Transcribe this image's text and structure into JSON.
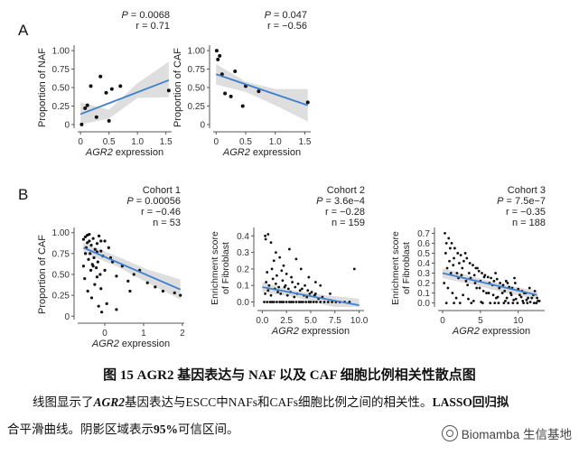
{
  "panels": {
    "a": "A",
    "b": "B"
  },
  "chart_data": [
    {
      "type": "scatter",
      "xlabel": "AGR2 expression",
      "ylabel": "Proportion of NAF",
      "xlim": [
        -0.05,
        1.6
      ],
      "ylim": [
        -0.05,
        1.05
      ],
      "xticks": [
        "0",
        "0.5",
        "1.0",
        "1.5"
      ],
      "xtick_vals": [
        0,
        0.5,
        1.0,
        1.5
      ],
      "yticks": [
        "0",
        "0.25",
        "0.50",
        "0.75",
        "1.00"
      ],
      "ytick_vals": [
        0,
        0.25,
        0.5,
        0.75,
        1.0
      ],
      "stats": [
        "P = 0.0068",
        "r = 0.71"
      ],
      "points": {
        "x": [
          0.02,
          0.08,
          0.12,
          0.18,
          0.28,
          0.35,
          0.45,
          0.5,
          0.55,
          0.7,
          1.55
        ],
        "y": [
          0.0,
          0.22,
          0.26,
          0.52,
          0.1,
          0.65,
          0.43,
          0.05,
          0.48,
          0.52,
          0.46
        ]
      },
      "fit": {
        "x": [
          0.0,
          1.55
        ],
        "y": [
          0.14,
          0.6
        ]
      },
      "ci_upper": [
        0.3,
        0.2,
        0.56,
        0.85
      ],
      "ci_lower": [
        0.0,
        0.08,
        0.36,
        0.37
      ],
      "ci_x": [
        0.0,
        0.5,
        1.0,
        1.55
      ]
    },
    {
      "type": "scatter",
      "xlabel": "AGR2 expression",
      "ylabel": "Proportion of CAF",
      "xlim": [
        -0.05,
        1.6
      ],
      "ylim": [
        -0.05,
        1.05
      ],
      "xticks": [
        "0",
        "0.5",
        "1.0",
        "1.5"
      ],
      "xtick_vals": [
        0,
        0.5,
        1.0,
        1.5
      ],
      "yticks": [
        "0",
        "0.25",
        "0.50",
        "0.75",
        "1.00"
      ],
      "ytick_vals": [
        0,
        0.25,
        0.5,
        0.75,
        1.0
      ],
      "stats": [
        "P = 0.047",
        "r = −0.56"
      ],
      "points": {
        "x": [
          0.01,
          0.03,
          0.06,
          0.1,
          0.15,
          0.25,
          0.32,
          0.45,
          0.5,
          0.72,
          1.55
        ],
        "y": [
          1.0,
          0.88,
          0.93,
          0.68,
          0.42,
          0.38,
          0.72,
          0.25,
          0.52,
          0.45,
          0.3
        ]
      },
      "fit": {
        "x": [
          0.0,
          1.55
        ],
        "y": [
          0.68,
          0.26
        ]
      },
      "ci_upper": [
        0.82,
        0.58,
        0.48,
        0.48
      ],
      "ci_lower": [
        0.54,
        0.44,
        0.26,
        0.04
      ],
      "ci_x": [
        0.0,
        0.5,
        1.0,
        1.55
      ]
    },
    {
      "type": "scatter",
      "title": "Cohort 1",
      "xlabel": "AGR2 expression",
      "ylabel": "Proportion of CAF",
      "xlim": [
        -0.7,
        2.05
      ],
      "ylim": [
        -0.04,
        1.04
      ],
      "xticks": [
        "0",
        "1",
        "2"
      ],
      "xtick_vals": [
        0,
        1,
        2
      ],
      "yticks": [
        "0",
        "0.25",
        "0.50",
        "0.75",
        "1.00"
      ],
      "ytick_vals": [
        0,
        0.25,
        0.5,
        0.75,
        1.0
      ],
      "stats": [
        "P = 0.00056",
        "r = −0.46",
        "n = 53"
      ],
      "points": {
        "x": [
          -0.55,
          -0.5,
          -0.45,
          -0.4,
          -0.35,
          -0.3,
          -0.25,
          -0.2,
          -0.15,
          -0.1,
          -0.05,
          0.0,
          -0.48,
          -0.42,
          -0.38,
          -0.32,
          -0.28,
          -0.22,
          -0.18,
          -0.12,
          -0.52,
          -0.36,
          -0.26,
          -0.44,
          -0.34,
          -0.16,
          -0.08,
          0.1,
          0.2,
          0.3,
          0.45,
          0.6,
          0.75,
          0.9,
          1.1,
          1.3,
          1.5,
          1.8,
          1.95,
          -0.5,
          -0.4,
          -0.3,
          -0.2,
          -0.1,
          0.05,
          0.15,
          -0.55,
          -0.45,
          -0.1,
          0.3,
          0.65,
          -0.2,
          0.0
        ],
        "y": [
          0.92,
          0.95,
          0.88,
          0.9,
          0.85,
          0.93,
          0.8,
          0.87,
          0.96,
          0.78,
          0.72,
          0.9,
          0.82,
          0.68,
          0.75,
          0.62,
          0.7,
          0.58,
          0.65,
          0.5,
          0.45,
          0.55,
          0.38,
          0.3,
          0.22,
          0.12,
          0.05,
          0.82,
          0.65,
          0.48,
          0.6,
          0.42,
          0.5,
          0.55,
          0.4,
          0.35,
          0.3,
          0.28,
          0.25,
          0.75,
          0.98,
          0.6,
          0.47,
          0.33,
          0.15,
          0.7,
          0.6,
          0.97,
          0.9,
          0.08,
          0.3,
          0.77,
          0.55
        ]
      },
      "fit": {
        "x": [
          -0.55,
          1.95
        ],
        "y": [
          0.82,
          0.32
        ]
      },
      "ci_upper": [
        0.88,
        0.72,
        0.56,
        0.44
      ],
      "ci_lower": [
        0.76,
        0.6,
        0.4,
        0.2
      ],
      "ci_x": [
        -0.55,
        0.3,
        1.1,
        1.95
      ]
    },
    {
      "type": "scatter",
      "title": "Cohort 2",
      "xlabel": "AGR2 expression",
      "ylabel": "Enrichment score of Fibroblast",
      "xlim": [
        -0.5,
        10.5
      ],
      "ylim": [
        -0.03,
        0.44
      ],
      "xticks": [
        "0.0",
        "2.5",
        "5.0",
        "7.5",
        "10.0"
      ],
      "xtick_vals": [
        0,
        2.5,
        5,
        7.5,
        10
      ],
      "yticks": [
        "0.0",
        "0.1",
        "0.2",
        "0.3",
        "0.4"
      ],
      "ytick_vals": [
        0,
        0.1,
        0.2,
        0.3,
        0.4
      ],
      "stats": [
        "P = 3.6e−4",
        "r = −0.28",
        "n = 159"
      ],
      "points": {
        "x": [
          0.2,
          0.5,
          0.8,
          1.0,
          1.2,
          1.5,
          1.8,
          2.0,
          2.2,
          2.5,
          2.8,
          3.0,
          3.2,
          3.5,
          3.8,
          4.0,
          4.2,
          4.5,
          4.8,
          5.0,
          5.3,
          5.6,
          6.0,
          6.4,
          6.8,
          7.2,
          7.6,
          8.0,
          8.5,
          9.0,
          0.3,
          0.6,
          0.9,
          1.3,
          1.6,
          1.9,
          2.3,
          2.6,
          2.9,
          3.3,
          3.6,
          3.9,
          4.3,
          4.6,
          4.9,
          5.4,
          5.8,
          6.2,
          0.4,
          0.7,
          1.1,
          1.4,
          1.7,
          2.1,
          2.4,
          2.7,
          3.1,
          3.4,
          3.7,
          4.1,
          4.4,
          4.7,
          5.1,
          5.5,
          0.5,
          1.0,
          1.5,
          2.0,
          2.5,
          3.0,
          0.3,
          0.35,
          0.6,
          1.2,
          1.4,
          2.2,
          3.5,
          4.0,
          4.8,
          5.5,
          6.0,
          7.0,
          9.5,
          1.8,
          2.8,
          0.9
        ],
        "y": [
          0.0,
          0.0,
          0.0,
          0.0,
          0.0,
          0.0,
          0.0,
          0.0,
          0.0,
          0.0,
          0.0,
          0.0,
          0.0,
          0.0,
          0.0,
          0.0,
          0.0,
          0.0,
          0.0,
          0.0,
          0.0,
          0.0,
          0.0,
          0.0,
          0.0,
          0.0,
          0.0,
          0.0,
          0.0,
          0.0,
          0.05,
          0.07,
          0.04,
          0.08,
          0.06,
          0.05,
          0.09,
          0.04,
          0.06,
          0.03,
          0.05,
          0.07,
          0.04,
          0.03,
          0.05,
          0.04,
          0.02,
          0.03,
          0.12,
          0.1,
          0.14,
          0.11,
          0.09,
          0.13,
          0.1,
          0.08,
          0.12,
          0.09,
          0.11,
          0.08,
          0.1,
          0.07,
          0.06,
          0.05,
          0.18,
          0.2,
          0.16,
          0.19,
          0.17,
          0.15,
          0.4,
          0.38,
          0.41,
          0.25,
          0.3,
          0.22,
          0.26,
          0.2,
          0.15,
          0.12,
          0.1,
          0.05,
          0.2,
          0.27,
          0.32,
          0.36
        ]
      },
      "fit": {
        "x": [
          0.0,
          10.0
        ],
        "y": [
          0.09,
          -0.02
        ]
      },
      "ci_upper": [
        0.12,
        0.07,
        0.04,
        0.02
      ],
      "ci_lower": [
        0.06,
        0.03,
        -0.02,
        -0.06
      ],
      "ci_x": [
        0.0,
        3.3,
        6.6,
        10.0
      ]
    },
    {
      "type": "scatter",
      "title": "Cohort 3",
      "xlabel": "AGR2 expression",
      "ylabel": "Enrichment score of Fibroblast",
      "xlim": [
        -0.6,
        13.5
      ],
      "ylim": [
        -0.04,
        0.74
      ],
      "xticks": [
        "0",
        "5",
        "10"
      ],
      "xtick_vals": [
        0,
        5,
        10
      ],
      "yticks": [
        "0.0",
        "0.1",
        "0.2",
        "0.3",
        "0.4",
        "0.5",
        "0.6",
        "0.7"
      ],
      "ytick_vals": [
        0,
        0.1,
        0.2,
        0.3,
        0.4,
        0.5,
        0.6,
        0.7
      ],
      "stats": [
        "P = 7.5e−7",
        "r = −0.35",
        "n = 188"
      ],
      "points": {
        "x": [
          0.3,
          0.8,
          1.2,
          1.6,
          2.0,
          2.4,
          2.8,
          3.2,
          3.6,
          4.0,
          4.4,
          4.8,
          5.2,
          5.6,
          6.0,
          6.4,
          6.8,
          7.2,
          7.6,
          8.0,
          8.4,
          8.8,
          9.2,
          9.6,
          10.0,
          10.5,
          11.0,
          11.5,
          12.0,
          12.5,
          0.5,
          1.0,
          1.5,
          2.2,
          2.6,
          3.0,
          3.5,
          4.2,
          4.6,
          5.0,
          5.5,
          6.2,
          6.6,
          7.0,
          7.5,
          8.2,
          8.6,
          9.0,
          9.5,
          10.2,
          10.8,
          11.3,
          12.2,
          0.4,
          0.9,
          1.4,
          1.9,
          2.5,
          3.1,
          3.7,
          4.3,
          4.9,
          5.4,
          6.1,
          6.7,
          7.3,
          7.9,
          8.5,
          9.1,
          9.7,
          10.4,
          11.1,
          11.8,
          12.6,
          0.6,
          1.1,
          2.1,
          3.3,
          4.5,
          5.8,
          7.1,
          8.3,
          9.4,
          10.6,
          11.6,
          12.8,
          0.2,
          0.7,
          1.3,
          1.8,
          2.7,
          3.4,
          4.1,
          5.1,
          6.3,
          7.4,
          8.7,
          9.9,
          11.2,
          12.4,
          0.5,
          1.5,
          2.3,
          3.8,
          5.3,
          6.9,
          8.1,
          9.3,
          10.7,
          12.1
        ],
        "y": [
          0.7,
          0.65,
          0.6,
          0.55,
          0.5,
          0.48,
          0.42,
          0.45,
          0.4,
          0.38,
          0.35,
          0.32,
          0.3,
          0.28,
          0.26,
          0.25,
          0.22,
          0.24,
          0.2,
          0.18,
          0.22,
          0.16,
          0.15,
          0.2,
          0.14,
          0.12,
          0.1,
          0.15,
          0.08,
          0.05,
          0.6,
          0.55,
          0.45,
          0.4,
          0.35,
          0.5,
          0.3,
          0.28,
          0.35,
          0.22,
          0.26,
          0.2,
          0.18,
          0.3,
          0.15,
          0.12,
          0.2,
          0.1,
          0.25,
          0.08,
          0.1,
          0.05,
          0.12,
          0.5,
          0.42,
          0.38,
          0.3,
          0.28,
          0.22,
          0.25,
          0.2,
          0.15,
          0.12,
          0.1,
          0.08,
          0.06,
          0.1,
          0.05,
          0.08,
          0.04,
          0.06,
          0.03,
          0.05,
          0.02,
          0.35,
          0.3,
          0.25,
          0.18,
          0.15,
          0.1,
          0.05,
          0.02,
          0.03,
          0.02,
          0.01,
          0.02,
          0.2,
          0.15,
          0.1,
          0.05,
          0.08,
          0.04,
          0.02,
          0.01,
          0.0,
          0.0,
          0.0,
          0.0,
          0.0,
          0.0,
          0.0,
          0.0,
          0.0,
          0.0,
          0.0,
          0.0,
          0.0,
          0.0,
          0.0,
          0.0
        ]
      },
      "fit": {
        "x": [
          0.0,
          12.5
        ],
        "y": [
          0.3,
          0.08
        ]
      },
      "ci_upper": [
        0.35,
        0.26,
        0.18,
        0.12
      ],
      "ci_lower": [
        0.25,
        0.18,
        0.1,
        0.04
      ],
      "ci_x": [
        0.0,
        4.2,
        8.4,
        12.5
      ]
    }
  ],
  "caption": "图 15 AGR2 基因表达与 NAF 以及 CAF 细胞比例相关性散点图",
  "description": {
    "line1_prefix": "线图显示了",
    "line1_gene": "AGR2",
    "line1_mid": "基因表达与ESCC中NAFs和CAFs细胞比例之间的相关性。",
    "line1_method": "LASSO回归拟",
    "line2_prefix": "合平滑曲线。阴影区域表示",
    "line2_ci": "95%",
    "line2_suffix": "可信区间。"
  },
  "watermark": "Biomamba 生信基地",
  "colors": {
    "fit": "#3f7fcf",
    "band": "#d6d6d6",
    "point": "#111111",
    "axis": "#555555"
  }
}
